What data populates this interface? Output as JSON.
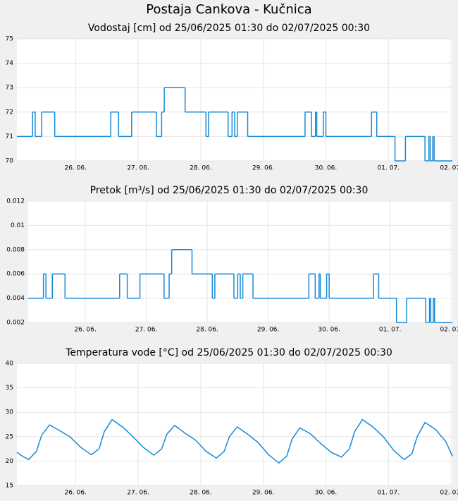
{
  "title": "Postaja Cankova - Kučnica",
  "chart_data": [
    {
      "type": "line",
      "drawstyle": "steps-post",
      "title": "Vodostaj [cm] od 25/06/2025 01:30 do 02/07/2025 00:30",
      "color": "#168ad6",
      "grid": true,
      "xlim": [
        "2025-06-25T01:30",
        "2025-07-02T00:30"
      ],
      "xticks": [
        {
          "value": "2025-06-26T00:00",
          "label": "26. 06."
        },
        {
          "value": "2025-06-27T00:00",
          "label": "27. 06."
        },
        {
          "value": "2025-06-28T00:00",
          "label": "28. 06."
        },
        {
          "value": "2025-06-29T00:00",
          "label": "29. 06."
        },
        {
          "value": "2025-06-30T00:00",
          "label": "30. 06."
        },
        {
          "value": "2025-07-01T00:00",
          "label": "01. 07."
        },
        {
          "value": "2025-07-02T00:00",
          "label": "02. 07."
        }
      ],
      "ylim": [
        70,
        75
      ],
      "yticks": [
        70,
        71,
        72,
        73,
        74,
        75
      ],
      "x": [
        "2025-06-25T01:30",
        "2025-06-25T07:30",
        "2025-06-25T08:30",
        "2025-06-25T11:00",
        "2025-06-25T16:00",
        "2025-06-26T13:30",
        "2025-06-26T16:30",
        "2025-06-26T21:30",
        "2025-06-27T07:00",
        "2025-06-27T09:00",
        "2025-06-27T10:00",
        "2025-06-27T18:00",
        "2025-06-28T02:00",
        "2025-06-28T03:00",
        "2025-06-28T10:30",
        "2025-06-28T12:00",
        "2025-06-28T13:00",
        "2025-06-28T14:00",
        "2025-06-28T18:00",
        "2025-06-29T16:00",
        "2025-06-29T18:30",
        "2025-06-29T20:00",
        "2025-06-29T20:30",
        "2025-06-29T23:00",
        "2025-06-30T00:00",
        "2025-06-30T17:30",
        "2025-06-30T19:30",
        "2025-07-01T02:30",
        "2025-07-01T06:30",
        "2025-07-01T14:00",
        "2025-07-01T15:30",
        "2025-07-01T16:00",
        "2025-07-01T17:00",
        "2025-07-01T17:30",
        "2025-07-02T00:30"
      ],
      "values": [
        71,
        72,
        71,
        72,
        71,
        72,
        71,
        72,
        71,
        72,
        73,
        72,
        71,
        72,
        71,
        72,
        71,
        72,
        71,
        72,
        71,
        72,
        71,
        72,
        71,
        72,
        71,
        70,
        71,
        70,
        71,
        70,
        71,
        70,
        70
      ]
    },
    {
      "type": "line",
      "drawstyle": "steps-post",
      "title": "Pretok [m³/s] od 25/06/2025 01:30 do 02/07/2025 00:30",
      "color": "#168ad6",
      "grid": true,
      "xlim": [
        "2025-06-25T01:30",
        "2025-07-02T00:30"
      ],
      "xticks": [
        {
          "value": "2025-06-26T00:00",
          "label": "26. 06."
        },
        {
          "value": "2025-06-27T00:00",
          "label": "27. 06."
        },
        {
          "value": "2025-06-28T00:00",
          "label": "28. 06."
        },
        {
          "value": "2025-06-29T00:00",
          "label": "29. 06."
        },
        {
          "value": "2025-06-30T00:00",
          "label": "30. 06."
        },
        {
          "value": "2025-07-01T00:00",
          "label": "01. 07."
        },
        {
          "value": "2025-07-02T00:00",
          "label": "02. 07."
        }
      ],
      "ylim": [
        0.002,
        0.012
      ],
      "yticks": [
        0.002,
        0.004,
        0.006,
        0.008,
        0.01,
        0.012
      ],
      "x": [
        "2025-06-25T01:30",
        "2025-06-25T07:30",
        "2025-06-25T08:30",
        "2025-06-25T11:00",
        "2025-06-25T16:00",
        "2025-06-26T13:30",
        "2025-06-26T16:30",
        "2025-06-26T21:30",
        "2025-06-27T07:00",
        "2025-06-27T09:00",
        "2025-06-27T10:00",
        "2025-06-27T18:00",
        "2025-06-28T02:00",
        "2025-06-28T03:00",
        "2025-06-28T10:30",
        "2025-06-28T12:00",
        "2025-06-28T13:00",
        "2025-06-28T14:00",
        "2025-06-28T18:00",
        "2025-06-29T16:00",
        "2025-06-29T18:30",
        "2025-06-29T20:00",
        "2025-06-29T20:30",
        "2025-06-29T23:00",
        "2025-06-30T00:00",
        "2025-06-30T17:30",
        "2025-06-30T19:30",
        "2025-07-01T02:30",
        "2025-07-01T06:30",
        "2025-07-01T14:00",
        "2025-07-01T15:30",
        "2025-07-01T16:00",
        "2025-07-01T17:00",
        "2025-07-01T17:30",
        "2025-07-02T00:30"
      ],
      "values": [
        0.004,
        0.006,
        0.004,
        0.006,
        0.004,
        0.006,
        0.004,
        0.006,
        0.004,
        0.006,
        0.008,
        0.006,
        0.004,
        0.006,
        0.004,
        0.006,
        0.004,
        0.006,
        0.004,
        0.006,
        0.004,
        0.006,
        0.004,
        0.006,
        0.004,
        0.006,
        0.004,
        0.002,
        0.004,
        0.002,
        0.004,
        0.002,
        0.004,
        0.002,
        0.002
      ]
    },
    {
      "type": "line",
      "title": "Temperatura vode [°C] od 25/06/2025 01:30 do 02/07/2025 00:30",
      "color": "#168ad6",
      "grid": true,
      "xlim": [
        "2025-06-25T01:30",
        "2025-07-02T00:30"
      ],
      "xticks": [
        {
          "value": "2025-06-26T00:00",
          "label": "26. 06."
        },
        {
          "value": "2025-06-27T00:00",
          "label": "27. 06."
        },
        {
          "value": "2025-06-28T00:00",
          "label": "28. 06."
        },
        {
          "value": "2025-06-29T00:00",
          "label": "29. 06."
        },
        {
          "value": "2025-06-30T00:00",
          "label": "30. 06."
        },
        {
          "value": "2025-07-01T00:00",
          "label": "01. 07."
        },
        {
          "value": "2025-07-02T00:00",
          "label": "02. 07."
        }
      ],
      "ylim": [
        15,
        40
      ],
      "yticks": [
        15,
        20,
        25,
        30,
        35,
        40
      ],
      "x": [
        "2025-06-25T01:30",
        "2025-06-25T03:00",
        "2025-06-25T06:00",
        "2025-06-25T09:00",
        "2025-06-25T11:00",
        "2025-06-25T14:00",
        "2025-06-25T18:00",
        "2025-06-25T22:00",
        "2025-06-26T02:00",
        "2025-06-26T06:00",
        "2025-06-26T09:00",
        "2025-06-26T11:00",
        "2025-06-26T14:00",
        "2025-06-26T18:00",
        "2025-06-26T22:00",
        "2025-06-27T02:00",
        "2025-06-27T06:00",
        "2025-06-27T09:00",
        "2025-06-27T11:00",
        "2025-06-27T14:00",
        "2025-06-27T18:00",
        "2025-06-27T22:00",
        "2025-06-28T02:00",
        "2025-06-28T06:00",
        "2025-06-28T09:00",
        "2025-06-28T11:00",
        "2025-06-28T14:00",
        "2025-06-28T18:00",
        "2025-06-28T22:00",
        "2025-06-29T02:00",
        "2025-06-29T06:00",
        "2025-06-29T09:00",
        "2025-06-29T11:00",
        "2025-06-29T14:00",
        "2025-06-29T18:00",
        "2025-06-29T22:00",
        "2025-06-30T02:00",
        "2025-06-30T06:00",
        "2025-06-30T09:00",
        "2025-06-30T11:00",
        "2025-06-30T14:00",
        "2025-06-30T18:00",
        "2025-06-30T22:00",
        "2025-07-01T02:00",
        "2025-07-01T06:00",
        "2025-07-01T09:00",
        "2025-07-01T11:00",
        "2025-07-01T14:00",
        "2025-07-01T18:00",
        "2025-07-01T22:00",
        "2025-07-02T00:30"
      ],
      "values": [
        21.8,
        21.2,
        20.3,
        22.0,
        25.3,
        27.4,
        26.2,
        24.9,
        22.8,
        21.3,
        22.5,
        26.0,
        28.5,
        27.0,
        25.0,
        22.8,
        21.2,
        22.5,
        25.5,
        27.3,
        25.7,
        24.3,
        22.0,
        20.6,
        22.0,
        25.0,
        27.0,
        25.5,
        23.8,
        21.3,
        19.6,
        21.0,
        24.5,
        26.8,
        25.6,
        23.6,
        21.8,
        20.8,
        22.5,
        26.0,
        28.5,
        27.0,
        25.0,
        22.2,
        20.3,
        21.5,
        25.0,
        27.9,
        26.5,
        24.0,
        21.0
      ]
    }
  ]
}
